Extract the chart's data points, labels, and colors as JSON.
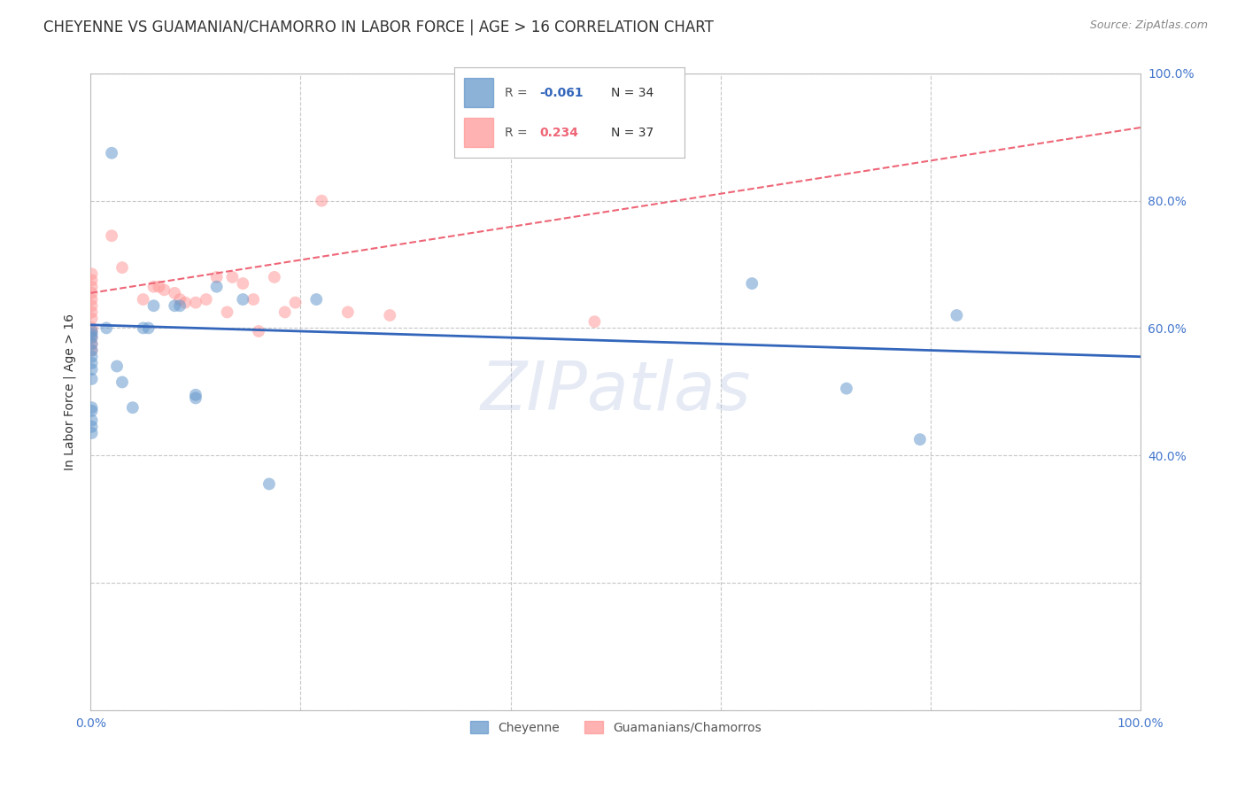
{
  "title": "CHEYENNE VS GUAMANIAN/CHAMORRO IN LABOR FORCE | AGE > 16 CORRELATION CHART",
  "source": "Source: ZipAtlas.com",
  "ylabel": "In Labor Force | Age > 16",
  "xlim": [
    0.0,
    1.0
  ],
  "ylim": [
    0.0,
    1.0
  ],
  "xticks": [
    0.0,
    0.2,
    0.4,
    0.6,
    0.8,
    1.0
  ],
  "yticks": [
    0.0,
    0.2,
    0.4,
    0.6,
    0.8,
    1.0
  ],
  "xtick_labels": [
    "0.0%",
    "",
    "",
    "",
    "",
    "100.0%"
  ],
  "ytick_labels": [
    "",
    "",
    "40.0%",
    "60.0%",
    "80.0%",
    "100.0%"
  ],
  "grid_color": "#c8c8c8",
  "background_color": "#ffffff",
  "cheyenne_color": "#6699cc",
  "guamanian_color": "#ff9999",
  "cheyenne_line_color": "#3366bb",
  "guamanian_line_color": "#ee6677",
  "tick_color": "#4477cc",
  "watermark": "ZIPatlas",
  "marker_size": 100,
  "marker_alpha": 0.55,
  "title_fontsize": 12,
  "source_fontsize": 9,
  "tick_fontsize": 10,
  "cheyenne_x": [
    0.001,
    0.001,
    0.001,
    0.001,
    0.001,
    0.001,
    0.001,
    0.001,
    0.001,
    0.001,
    0.015,
    0.02,
    0.025,
    0.03,
    0.04,
    0.05,
    0.055,
    0.06,
    0.08,
    0.085,
    0.1,
    0.1,
    0.12,
    0.145,
    0.17,
    0.215,
    0.63,
    0.72,
    0.79,
    0.825,
    0.001,
    0.001,
    0.001,
    0.001
  ],
  "cheyenne_y": [
    0.595,
    0.59,
    0.585,
    0.575,
    0.565,
    0.555,
    0.545,
    0.535,
    0.52,
    0.475,
    0.6,
    0.875,
    0.54,
    0.515,
    0.475,
    0.6,
    0.6,
    0.635,
    0.635,
    0.635,
    0.495,
    0.49,
    0.665,
    0.645,
    0.355,
    0.645,
    0.67,
    0.505,
    0.425,
    0.62,
    0.47,
    0.455,
    0.445,
    0.435
  ],
  "guamanian_x": [
    0.001,
    0.001,
    0.001,
    0.001,
    0.001,
    0.001,
    0.001,
    0.001,
    0.001,
    0.001,
    0.001,
    0.001,
    0.001,
    0.02,
    0.03,
    0.05,
    0.06,
    0.065,
    0.07,
    0.08,
    0.085,
    0.09,
    0.1,
    0.11,
    0.12,
    0.13,
    0.135,
    0.145,
    0.155,
    0.16,
    0.175,
    0.185,
    0.195,
    0.22,
    0.245,
    0.285,
    0.48
  ],
  "guamanian_y": [
    0.685,
    0.675,
    0.665,
    0.655,
    0.645,
    0.635,
    0.625,
    0.615,
    0.6,
    0.595,
    0.585,
    0.575,
    0.565,
    0.745,
    0.695,
    0.645,
    0.665,
    0.665,
    0.66,
    0.655,
    0.645,
    0.64,
    0.64,
    0.645,
    0.68,
    0.625,
    0.68,
    0.67,
    0.645,
    0.595,
    0.68,
    0.625,
    0.64,
    0.8,
    0.625,
    0.62,
    0.61
  ],
  "cheyenne_line_x": [
    0.0,
    1.0
  ],
  "cheyenne_line_y": [
    0.605,
    0.555
  ],
  "guamanian_line_x": [
    0.0,
    1.0
  ],
  "guamanian_line_y": [
    0.655,
    0.915
  ]
}
